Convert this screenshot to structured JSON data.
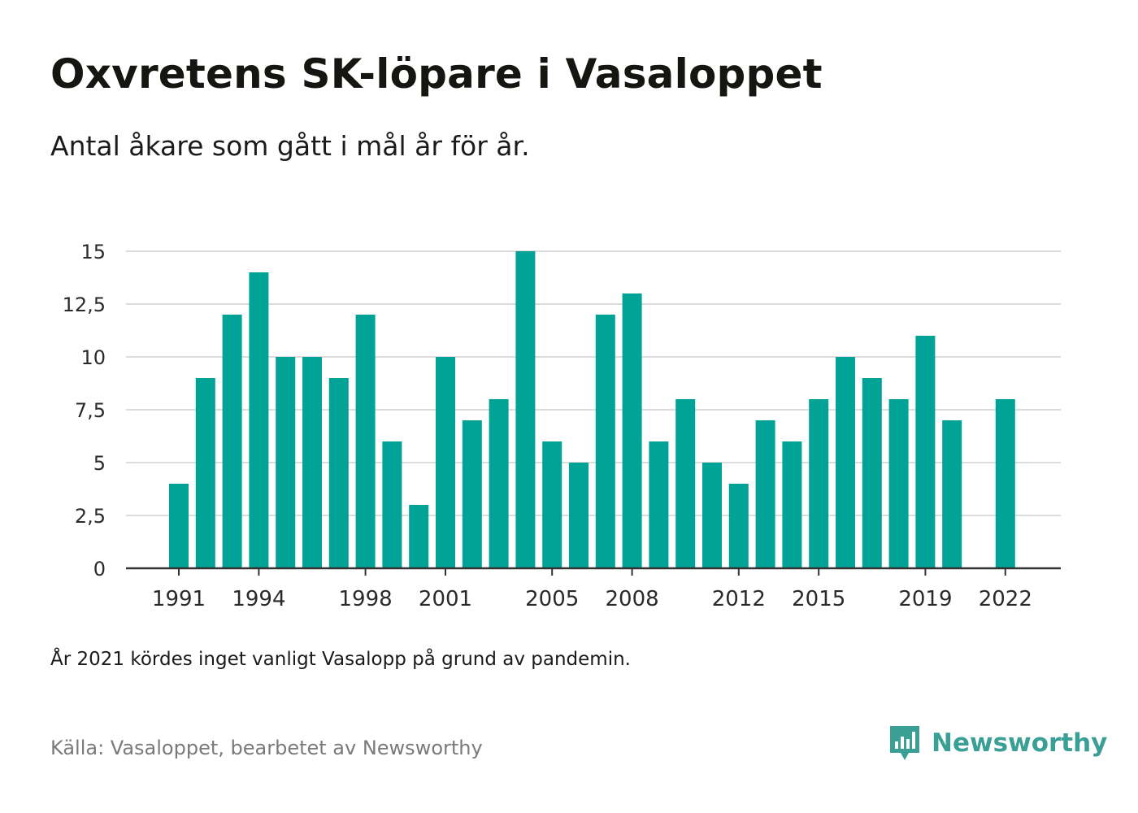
{
  "title": "Oxvretens SK-löpare i Vasaloppet",
  "subtitle": "Antal åkare som gått i mål år för år.",
  "note": "År 2021 kördes inget vanligt Vasalopp på grund av pandemin.",
  "source": "Källa: Vasaloppet, bearbetet av Newsworthy",
  "brand": {
    "name": "Newsworthy",
    "color": "#3a9f94"
  },
  "chart_data": {
    "type": "bar",
    "title": "Oxvretens SK-löpare i Vasaloppet",
    "subtitle": "Antal åkare som gått i mål år för år.",
    "xlabel": "",
    "ylabel": "",
    "bar_color": "#00a396",
    "grid": true,
    "ylim": [
      0,
      15
    ],
    "y_ticks": [
      0,
      2.5,
      5,
      7.5,
      10,
      12.5,
      15
    ],
    "y_tick_labels": [
      "0",
      "2,5",
      "5",
      "7,5",
      "10",
      "12,5",
      "15"
    ],
    "x_tick_labels": [
      "1991",
      "1994",
      "1998",
      "2001",
      "2005",
      "2008",
      "2012",
      "2015",
      "2019",
      "2022"
    ],
    "categories": [
      "1991",
      "1992",
      "1993",
      "1994",
      "1995",
      "1996",
      "1997",
      "1998",
      "1999",
      "2000",
      "2001",
      "2002",
      "2003",
      "2004",
      "2005",
      "2006",
      "2007",
      "2008",
      "2009",
      "2010",
      "2011",
      "2012",
      "2013",
      "2014",
      "2015",
      "2016",
      "2017",
      "2018",
      "2019",
      "2020",
      "2021",
      "2022"
    ],
    "values": [
      4,
      9,
      12,
      14,
      10,
      10,
      9,
      12,
      6,
      3,
      10,
      7,
      8,
      15,
      6,
      5,
      12,
      13,
      6,
      8,
      5,
      4,
      7,
      6,
      8,
      10,
      9,
      8,
      11,
      7,
      null,
      8
    ]
  }
}
